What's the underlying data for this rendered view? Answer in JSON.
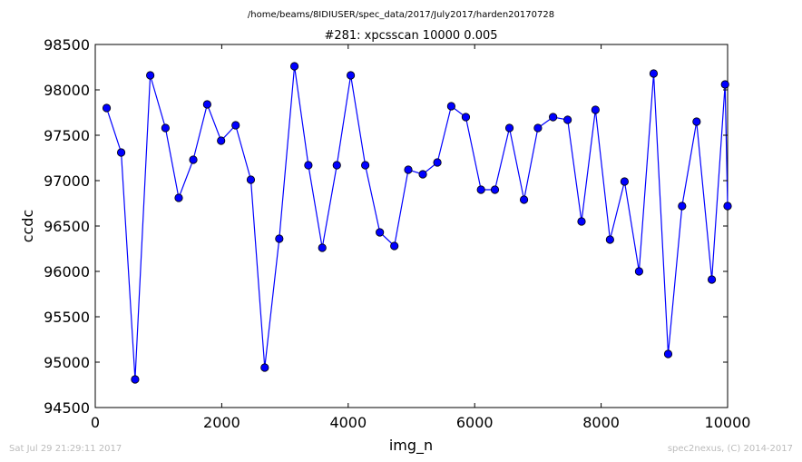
{
  "suptitle": "/home/beams/8IDIUSER/spec_data/2017/July2017/harden20170728",
  "footer_left": "Sat Jul 29 21:29:11 2017",
  "footer_right": "spec2nexus, (C) 2014-2017",
  "chart_data": {
    "type": "line",
    "title": "#281: xpcsscan 10000 0.005",
    "xlabel": "img_n",
    "ylabel": "ccdc",
    "xlim": [
      0,
      10000
    ],
    "ylim": [
      94500,
      98500
    ],
    "xticks": [
      0,
      2000,
      4000,
      6000,
      8000,
      10000
    ],
    "yticks": [
      94500,
      95000,
      95500,
      96000,
      96500,
      97000,
      97500,
      98000,
      98500
    ],
    "xtick_labels": [
      "0",
      "2000",
      "4000",
      "6000",
      "8000",
      "10000"
    ],
    "ytick_labels": [
      "94500",
      "95000",
      "95500",
      "96000",
      "96500",
      "97000",
      "97500",
      "98000",
      "98500"
    ],
    "grid": false,
    "marker": "circle",
    "colors": {
      "line": "#0000ff",
      "marker_face": "#0000ff",
      "marker_edge": "#000000",
      "axes": "#000000"
    },
    "series": [
      {
        "x": [
          180,
          410,
          630,
          870,
          1110,
          1320,
          1550,
          1770,
          1990,
          2220,
          2460,
          2680,
          2910,
          3150,
          3370,
          3590,
          3820,
          4040,
          4270,
          4500,
          4730,
          4950,
          5180,
          5410,
          5630,
          5860,
          6100,
          6320,
          6550,
          6780,
          7000,
          7240,
          7470,
          7690,
          7910,
          8140,
          8370,
          8600,
          8830,
          9060,
          9280,
          9510,
          9750,
          9960,
          10000
        ],
        "y": [
          97800,
          97310,
          94810,
          98160,
          97580,
          96810,
          97230,
          97840,
          97440,
          97610,
          97010,
          94940,
          96360,
          98260,
          97170,
          96260,
          97170,
          98160,
          97170,
          96430,
          96280,
          97120,
          97070,
          97200,
          97820,
          97700,
          96900,
          96900,
          97580,
          96790,
          97580,
          97700,
          97670,
          96550,
          97780,
          96350,
          96990,
          96000,
          98180,
          95090,
          96720,
          97650,
          95910,
          98060,
          96720
        ]
      }
    ]
  }
}
